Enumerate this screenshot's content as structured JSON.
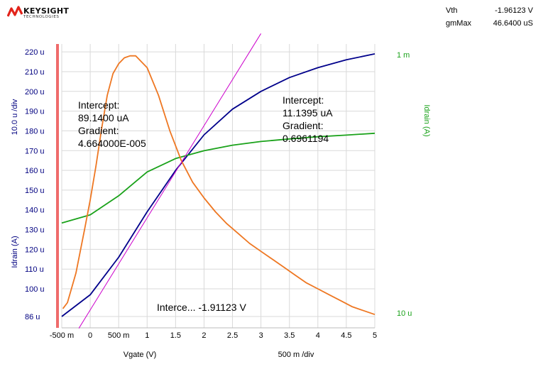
{
  "brand": {
    "name": "KEYSIGHT",
    "sub": "TECHNOLOGIES"
  },
  "measurements": [
    {
      "label": "Vth",
      "value": "-1.96123 V"
    },
    {
      "label": "gmMax",
      "value": "46.6400 uS"
    }
  ],
  "colors": {
    "background": "#ffffff",
    "grid": "#d9d9d9",
    "idrain_linear": "#00008b",
    "idrain_log": "#1aa21a",
    "gm": "#ee7722",
    "tangent": "#cc00cc",
    "left_axis": "#000080",
    "right_axis": "#1aa21a",
    "marker": "#ef6b6b"
  },
  "chart_data": {
    "type": "line",
    "x_axis": {
      "label": "Vgate (V)",
      "scale_label": "500 m /div",
      "range": [
        -0.5,
        5
      ],
      "ticks": [
        -0.5,
        0,
        0.5,
        1,
        1.5,
        2,
        2.5,
        3,
        3.5,
        4,
        4.5,
        5
      ],
      "tick_labels": [
        "-500 m",
        "0",
        "500 m",
        "1",
        "1.5",
        "2",
        "2.5",
        "3",
        "3.5",
        "4",
        "4.5",
        "5"
      ]
    },
    "y_axis_left": {
      "label": "Idrain (A)",
      "scale_label": "10.0 u /div",
      "range": [
        86,
        224
      ],
      "unit_note": "values in u",
      "ticks": [
        86,
        100,
        110,
        120,
        130,
        140,
        150,
        160,
        170,
        180,
        190,
        200,
        210,
        220
      ],
      "tick_labels": [
        "86 u",
        "100 u",
        "110 u",
        "120 u",
        "130 u",
        "140 u",
        "150 u",
        "160 u",
        "170 u",
        "180 u",
        "190 u",
        "200 u",
        "210 u",
        "220 u"
      ]
    },
    "y_axis_right": {
      "label": "Idrain (A)",
      "scale": "log",
      "range": [
        1e-05,
        0.001
      ],
      "tick_labels": [
        "1 m",
        "10 u"
      ]
    },
    "grid": true,
    "marker_x": -0.5,
    "series": [
      {
        "axis": "left",
        "color_key": "idrain_linear",
        "x": [
          -0.5,
          0,
          0.5,
          1,
          1.5,
          2,
          2.5,
          3,
          3.5,
          4,
          4.5,
          5
        ],
        "y": [
          86,
          97,
          116,
          139,
          160,
          178,
          191,
          200,
          207,
          212,
          216,
          219
        ]
      },
      {
        "axis": "right",
        "color_key": "idrain_log",
        "x": [
          -0.5,
          0,
          0.5,
          1,
          1.5,
          2,
          2.5,
          3,
          3.5,
          4,
          4.5,
          5
        ],
        "y": [
          5.2e-05,
          6e-05,
          8.4e-05,
          0.000128,
          0.000162,
          0.000186,
          0.000205,
          0.000219,
          0.000229,
          0.000238,
          0.000245,
          0.000253
        ]
      },
      {
        "axis": "left",
        "color_key": "gm",
        "x": [
          -0.48,
          -0.4,
          -0.25,
          -0.1,
          0,
          0.1,
          0.2,
          0.3,
          0.4,
          0.5,
          0.6,
          0.7,
          0.8,
          1.0,
          1.2,
          1.4,
          1.6,
          1.8,
          2.0,
          2.2,
          2.4,
          2.6,
          2.8,
          3.0,
          3.2,
          3.4,
          3.6,
          3.8,
          4.0,
          4.2,
          4.4,
          4.6,
          4.8,
          5.0
        ],
        "y": [
          90,
          93,
          108,
          130,
          145,
          162,
          181,
          198,
          209,
          214,
          217,
          218,
          218,
          212,
          198,
          180,
          165,
          154,
          146,
          139,
          133,
          128,
          123,
          119,
          115,
          111,
          107,
          103,
          100,
          97,
          94,
          91,
          89,
          87
        ]
      },
      {
        "axis": "left",
        "color_key": "tangent",
        "x": [
          -0.2,
          3.0
        ],
        "y": [
          80.0,
          229.3
        ]
      }
    ],
    "annotations": [
      {
        "lines": [
          "Intercept:",
          "89.1400 uA",
          "Gradient:",
          "4.664000E-005"
        ]
      },
      {
        "lines": [
          "Intercept:",
          "11.1395 uA",
          "Gradient:",
          "0.6961194"
        ]
      },
      {
        "lines": [
          "Interce... -1.91123 V"
        ]
      }
    ]
  }
}
